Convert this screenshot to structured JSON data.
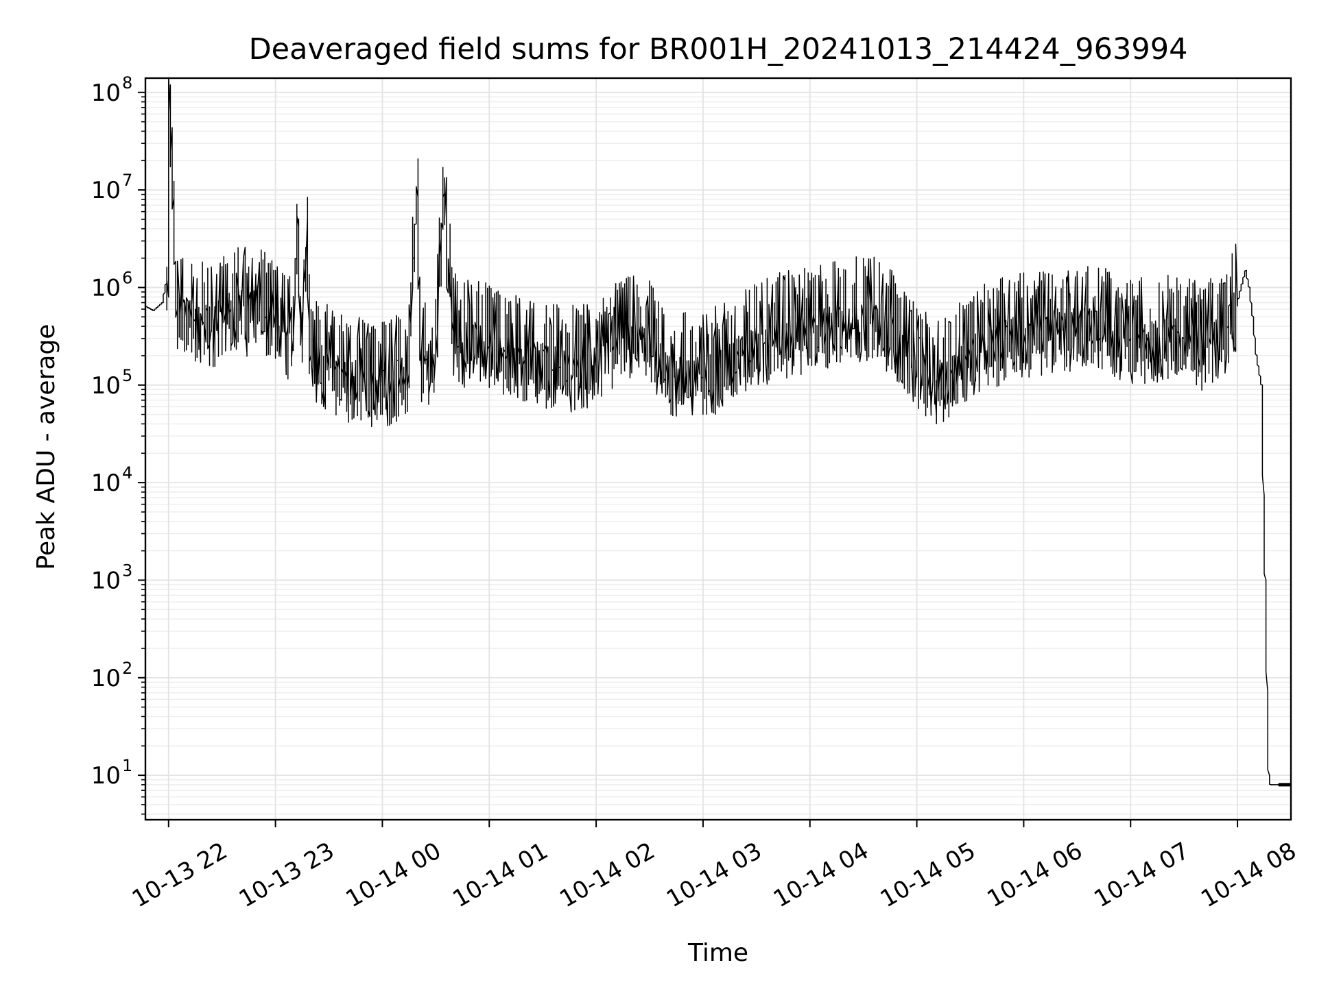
{
  "chart_data": {
    "type": "line",
    "title": "Deaveraged field sums for BR001H_20241013_214424_963994",
    "xlabel": "Time",
    "ylabel": "Peak ADU - average",
    "y_scale": "log",
    "ylim": [
      3.5,
      140000000
    ],
    "xlim": [
      "2024-10-13 21:47",
      "2024-10-14 08:30"
    ],
    "grid": true,
    "grid_minor": true,
    "legend": "none",
    "line_color": "#000000",
    "x_ticks": [
      {
        "value": "2024-10-13 22:00",
        "label": "10-13 22"
      },
      {
        "value": "2024-10-13 23:00",
        "label": "10-13 23"
      },
      {
        "value": "2024-10-14 00:00",
        "label": "10-14 00"
      },
      {
        "value": "2024-10-14 01:00",
        "label": "10-14 01"
      },
      {
        "value": "2024-10-14 02:00",
        "label": "10-14 02"
      },
      {
        "value": "2024-10-14 03:00",
        "label": "10-14 03"
      },
      {
        "value": "2024-10-14 04:00",
        "label": "10-14 04"
      },
      {
        "value": "2024-10-14 05:00",
        "label": "10-14 05"
      },
      {
        "value": "2024-10-14 06:00",
        "label": "10-14 06"
      },
      {
        "value": "2024-10-14 07:00",
        "label": "10-14 07"
      },
      {
        "value": "2024-10-14 08:00",
        "label": "10-14 08"
      }
    ],
    "y_ticks": [
      {
        "value": 10,
        "base": "10",
        "exp": "1"
      },
      {
        "value": 100,
        "base": "10",
        "exp": "2"
      },
      {
        "value": 1000,
        "base": "10",
        "exp": "3"
      },
      {
        "value": 10000,
        "base": "10",
        "exp": "4"
      },
      {
        "value": 100000,
        "base": "10",
        "exp": "5"
      },
      {
        "value": 1000000,
        "base": "10",
        "exp": "6"
      },
      {
        "value": 10000000,
        "base": "10",
        "exp": "7"
      },
      {
        "value": 100000000,
        "base": "10",
        "exp": "8"
      }
    ],
    "series": [
      {
        "x": [
          "2024-10-13 21:47",
          "2024-10-13 21:52",
          "2024-10-13 21:57",
          "2024-10-13 21:59",
          "2024-10-13 22:00",
          "2024-10-13 22:01",
          "2024-10-13 22:05",
          "2024-10-13 22:10",
          "2024-10-13 22:15",
          "2024-10-13 22:20",
          "2024-10-13 22:25",
          "2024-10-13 22:30",
          "2024-10-13 22:35",
          "2024-10-13 22:40",
          "2024-10-13 22:45",
          "2024-10-13 22:50",
          "2024-10-13 22:55",
          "2024-10-13 23:00",
          "2024-10-13 23:05",
          "2024-10-13 23:10",
          "2024-10-13 23:13",
          "2024-10-13 23:15",
          "2024-10-13 23:18",
          "2024-10-13 23:20",
          "2024-10-13 23:30",
          "2024-10-13 23:40",
          "2024-10-13 23:50",
          "2024-10-13 23:55",
          "2024-10-14 00:00",
          "2024-10-14 00:05",
          "2024-10-14 00:10",
          "2024-10-14 00:15",
          "2024-10-14 00:20",
          "2024-10-14 00:22",
          "2024-10-14 00:30",
          "2024-10-14 00:35",
          "2024-10-14 00:40",
          "2024-10-14 00:43",
          "2024-10-14 00:50",
          "2024-10-14 01:00",
          "2024-10-14 01:10",
          "2024-10-14 01:20",
          "2024-10-14 01:30",
          "2024-10-14 01:40",
          "2024-10-14 01:50",
          "2024-10-14 02:00",
          "2024-10-14 02:10",
          "2024-10-14 02:20",
          "2024-10-14 02:30",
          "2024-10-14 02:40",
          "2024-10-14 02:50",
          "2024-10-14 03:00",
          "2024-10-14 03:10",
          "2024-10-14 03:20",
          "2024-10-14 03:30",
          "2024-10-14 03:40",
          "2024-10-14 03:50",
          "2024-10-14 04:00",
          "2024-10-14 04:10",
          "2024-10-14 04:20",
          "2024-10-14 04:30",
          "2024-10-14 04:40",
          "2024-10-14 04:50",
          "2024-10-14 05:00",
          "2024-10-14 05:10",
          "2024-10-14 05:20",
          "2024-10-14 05:30",
          "2024-10-14 05:40",
          "2024-10-14 05:50",
          "2024-10-14 06:00",
          "2024-10-14 06:10",
          "2024-10-14 06:20",
          "2024-10-14 06:30",
          "2024-10-14 06:40",
          "2024-10-14 06:50",
          "2024-10-14 07:00",
          "2024-10-14 07:10",
          "2024-10-14 07:20",
          "2024-10-14 07:30",
          "2024-10-14 07:40",
          "2024-10-14 07:50",
          "2024-10-14 07:55",
          "2024-10-14 08:00",
          "2024-10-14 08:03",
          "2024-10-14 08:05",
          "2024-10-14 08:07",
          "2024-10-14 08:09",
          "2024-10-14 08:11",
          "2024-10-14 08:14",
          "2024-10-14 08:16",
          "2024-10-14 08:18",
          "2024-10-14 08:19",
          "2024-10-14 08:20",
          "2024-10-14 08:23",
          "2024-10-14 08:30"
        ],
        "y": [
          650000,
          580000,
          700000,
          1100000,
          800000,
          62000000,
          600000,
          500000,
          450000,
          420000,
          400000,
          500000,
          600000,
          650000,
          550000,
          700000,
          500000,
          400000,
          350000,
          300000,
          4200000,
          250000,
          5200000,
          200000,
          150000,
          120000,
          110000,
          100000,
          100000,
          110000,
          120000,
          130000,
          8500000,
          150000,
          200000,
          9300000,
          350000,
          250000,
          300000,
          250000,
          200000,
          180000,
          170000,
          150000,
          150000,
          150000,
          250000,
          300000,
          280000,
          130000,
          130000,
          120000,
          150000,
          200000,
          250000,
          300000,
          350000,
          350000,
          400000,
          450000,
          500000,
          450000,
          300000,
          150000,
          110000,
          130000,
          200000,
          250000,
          300000,
          320000,
          350000,
          380000,
          400000,
          380000,
          350000,
          300000,
          280000,
          300000,
          300000,
          250000,
          300000,
          400000,
          650000,
          1100000,
          1500000,
          1000000,
          500000,
          200000,
          100000,
          1000,
          10,
          8,
          8,
          8,
          8
        ]
      }
    ]
  }
}
